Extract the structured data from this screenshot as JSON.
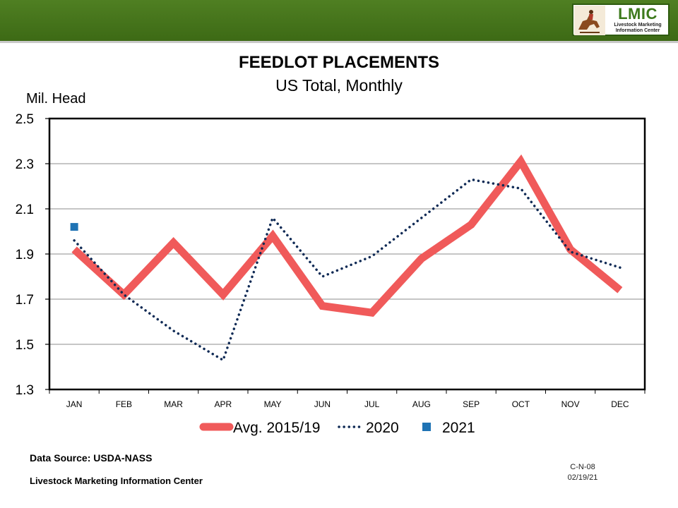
{
  "header": {
    "logo": {
      "title": "LMIC",
      "subtitle_line1": "Livestock Marketing",
      "subtitle_line2": "Information Center"
    },
    "band_color": "#457222"
  },
  "chart_data": {
    "type": "line",
    "title": "FEEDLOT PLACEMENTS",
    "subtitle": "US Total, Monthly",
    "ylabel": "Mil. Head",
    "xlabel": "",
    "categories": [
      "JAN",
      "FEB",
      "MAR",
      "APR",
      "MAY",
      "JUN",
      "JUL",
      "AUG",
      "SEP",
      "OCT",
      "NOV",
      "DEC"
    ],
    "ylim": [
      1.3,
      2.5
    ],
    "yticks": [
      1.3,
      1.5,
      1.7,
      1.9,
      2.1,
      2.3,
      2.5
    ],
    "ytick_labels": [
      "1.3",
      "1.5",
      "1.7",
      "1.9",
      "2.1",
      "2.3",
      "2.5"
    ],
    "grid": true,
    "legend_position": "bottom",
    "series": [
      {
        "name": "Avg. 2015/19",
        "style": "thick-solid",
        "color": "#f05a5a",
        "values": [
          1.92,
          1.72,
          1.95,
          1.72,
          1.98,
          1.67,
          1.64,
          1.88,
          2.03,
          2.31,
          1.92,
          1.74
        ]
      },
      {
        "name": "2020",
        "style": "dotted",
        "color": "#0f2a55",
        "values": [
          1.96,
          1.72,
          1.56,
          1.43,
          2.06,
          1.8,
          1.89,
          2.06,
          2.23,
          2.19,
          1.91,
          1.84
        ]
      },
      {
        "name": "2021",
        "style": "marker",
        "color": "#1f73b4",
        "values": [
          2.02,
          null,
          null,
          null,
          null,
          null,
          null,
          null,
          null,
          null,
          null,
          null
        ]
      }
    ]
  },
  "footer": {
    "source": "Data Source:  USDA-NASS",
    "org": "Livestock Marketing Information Center",
    "chart_id": "C-N-08",
    "date": "02/19/21"
  }
}
